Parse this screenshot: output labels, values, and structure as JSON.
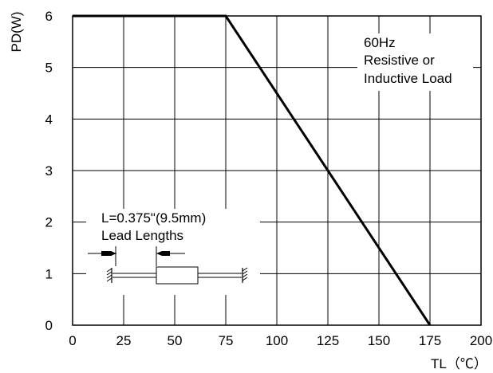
{
  "chart_data": {
    "type": "line",
    "ylabel": "PD(W)",
    "xlabel": "TL（℃）",
    "xlim": [
      0,
      200
    ],
    "ylim": [
      0,
      6
    ],
    "x_ticks": [
      "0",
      "25",
      "50",
      "75",
      "100",
      "125",
      "150",
      "175",
      "200"
    ],
    "y_ticks": [
      "0",
      "1",
      "2",
      "3",
      "4",
      "5",
      "6"
    ],
    "grid": true,
    "series": [
      {
        "x": [
          0,
          75,
          175
        ],
        "y": [
          6,
          6,
          0
        ]
      }
    ],
    "annotations": {
      "conditions": [
        "60Hz",
        "Resistive or",
        "Inductive Load"
      ],
      "lead": [
        "L=0.375\"(9.5mm)",
        "Lead Lengths"
      ]
    }
  }
}
